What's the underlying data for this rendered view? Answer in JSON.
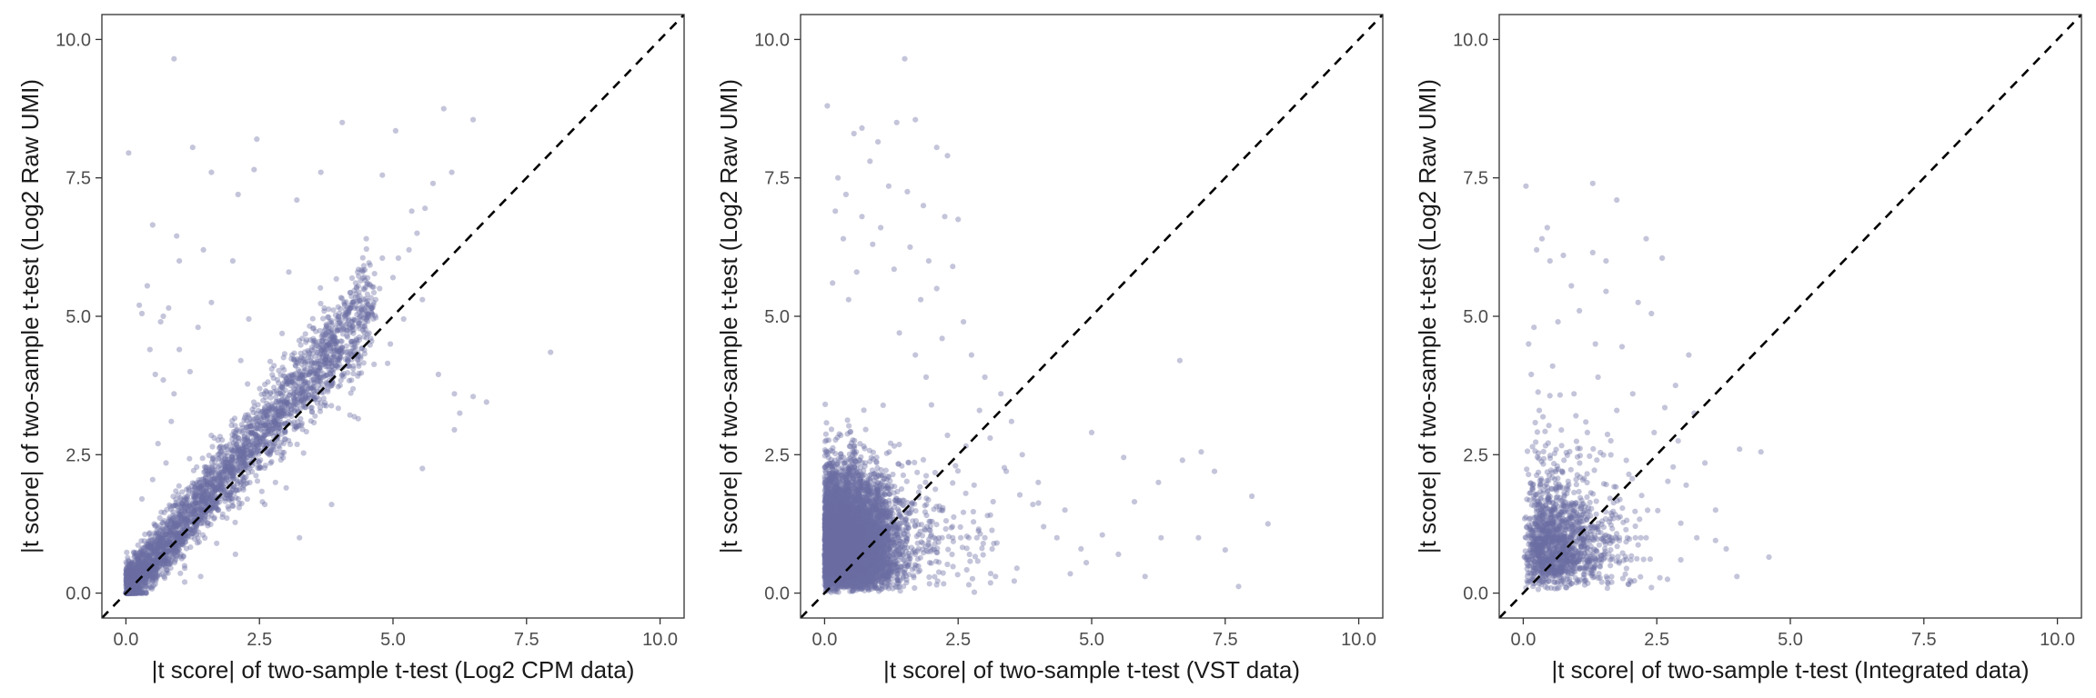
{
  "style": {
    "point_color": "#6b6fa3",
    "point_opacity": 0.4,
    "background": "#ffffff",
    "frame_color": "#333333",
    "reference_line": "dashed black y = x"
  },
  "chart_data": [
    {
      "type": "scatter",
      "title": "",
      "xlabel": "|t score| of two-sample t-test (Log2 CPM data)",
      "ylabel": "|t score| of two-sample t-test (Log2 Raw UMI)",
      "xlim": [
        -0.45,
        10.45
      ],
      "ylim": [
        -0.45,
        10.45
      ],
      "xticks": [
        "0.0",
        "2.5",
        "5.0",
        "7.5",
        "10.0"
      ],
      "yticks": [
        "0.0",
        "2.5",
        "5.0",
        "7.5",
        "10.0"
      ],
      "xtick_values": [
        0,
        2.5,
        5,
        7.5,
        10
      ],
      "ytick_values": [
        0,
        2.5,
        5,
        7.5,
        10
      ],
      "reference_line": "y = x",
      "grid": false,
      "points": [
        [
          0.9,
          9.65
        ],
        [
          0.05,
          7.95
        ],
        [
          1.25,
          8.05
        ],
        [
          2.45,
          8.2
        ],
        [
          4.05,
          8.5
        ],
        [
          5.05,
          8.35
        ],
        [
          5.95,
          8.75
        ],
        [
          6.5,
          8.55
        ],
        [
          1.6,
          7.6
        ],
        [
          2.4,
          7.65
        ],
        [
          3.65,
          7.6
        ],
        [
          4.8,
          7.55
        ],
        [
          5.75,
          7.4
        ],
        [
          6.1,
          7.6
        ],
        [
          3.2,
          7.1
        ],
        [
          2.1,
          7.2
        ],
        [
          0.5,
          6.65
        ],
        [
          1.0,
          6.0
        ],
        [
          1.45,
          6.2
        ],
        [
          0.95,
          6.45
        ],
        [
          2.0,
          6.0
        ],
        [
          3.05,
          5.8
        ],
        [
          4.5,
          6.4
        ],
        [
          5.35,
          6.9
        ],
        [
          5.6,
          6.95
        ],
        [
          5.45,
          6.5
        ],
        [
          1.6,
          5.25
        ],
        [
          0.4,
          5.55
        ],
        [
          0.25,
          5.2
        ],
        [
          0.3,
          5.05
        ],
        [
          0.65,
          4.9
        ],
        [
          0.8,
          5.15
        ],
        [
          0.7,
          5.0
        ],
        [
          1.35,
          4.8
        ],
        [
          1.0,
          4.4
        ],
        [
          2.3,
          4.95
        ],
        [
          2.15,
          4.2
        ],
        [
          0.45,
          4.4
        ],
        [
          0.55,
          3.95
        ],
        [
          0.9,
          3.6
        ],
        [
          0.7,
          3.85
        ],
        [
          1.2,
          4.0
        ],
        [
          3.3,
          4.6
        ],
        [
          3.75,
          4.85
        ],
        [
          4.25,
          5.25
        ],
        [
          4.5,
          5.1
        ],
        [
          4.75,
          5.5
        ],
        [
          5.0,
          5.7
        ],
        [
          5.3,
          6.2
        ],
        [
          5.1,
          6.05
        ],
        [
          4.8,
          6.05
        ],
        [
          4.3,
          5.6
        ],
        [
          7.95,
          4.35
        ],
        [
          6.15,
          3.6
        ],
        [
          6.5,
          3.55
        ],
        [
          6.75,
          3.45
        ],
        [
          6.25,
          3.25
        ],
        [
          6.15,
          2.95
        ],
        [
          5.55,
          2.25
        ],
        [
          5.85,
          3.95
        ],
        [
          4.9,
          4.15
        ],
        [
          4.35,
          3.15
        ],
        [
          3.85,
          1.6
        ],
        [
          3.25,
          1.0
        ],
        [
          2.05,
          0.7
        ],
        [
          1.7,
          0.9
        ],
        [
          2.6,
          1.6
        ],
        [
          2.8,
          2.0
        ],
        [
          3.0,
          1.9
        ],
        [
          1.4,
          0.3
        ],
        [
          1.1,
          0.2
        ],
        [
          0.3,
          1.7
        ],
        [
          0.5,
          2.05
        ],
        [
          0.75,
          2.35
        ],
        [
          0.85,
          3.1
        ],
        [
          0.6,
          2.7
        ],
        [
          3.65,
          3.7
        ],
        [
          3.9,
          4.05
        ],
        [
          4.6,
          4.55
        ],
        [
          4.95,
          4.5
        ],
        [
          5.2,
          4.95
        ],
        [
          5.55,
          5.3
        ],
        [
          2.7,
          3.6
        ],
        [
          2.95,
          3.3
        ]
      ],
      "cloud": {
        "slope": 1.12,
        "spread": 0.22,
        "x_max": 4.6,
        "n": 3200,
        "seed": 11
      }
    },
    {
      "type": "scatter",
      "title": "",
      "xlabel": "|t score| of two-sample t-test (VST data)",
      "ylabel": "|t score| of two-sample t-test (Log2 Raw UMI)",
      "xlim": [
        -0.45,
        10.45
      ],
      "ylim": [
        -0.45,
        10.45
      ],
      "xticks": [
        "0.0",
        "2.5",
        "5.0",
        "7.5",
        "10.0"
      ],
      "yticks": [
        "0.0",
        "2.5",
        "5.0",
        "7.5",
        "10.0"
      ],
      "xtick_values": [
        0,
        2.5,
        5,
        7.5,
        10
      ],
      "ytick_values": [
        0,
        2.5,
        5,
        7.5,
        10
      ],
      "reference_line": "y = x",
      "grid": false,
      "points": [
        [
          1.5,
          9.65
        ],
        [
          0.05,
          8.8
        ],
        [
          0.7,
          8.4
        ],
        [
          0.55,
          8.3
        ],
        [
          1.35,
          8.5
        ],
        [
          1.7,
          8.55
        ],
        [
          1.0,
          8.15
        ],
        [
          2.1,
          8.05
        ],
        [
          2.3,
          7.9
        ],
        [
          0.85,
          7.8
        ],
        [
          0.25,
          7.5
        ],
        [
          0.4,
          7.2
        ],
        [
          1.2,
          7.35
        ],
        [
          1.55,
          7.25
        ],
        [
          1.85,
          7.0
        ],
        [
          0.2,
          6.9
        ],
        [
          0.7,
          6.8
        ],
        [
          1.05,
          6.6
        ],
        [
          2.25,
          6.8
        ],
        [
          2.5,
          6.75
        ],
        [
          0.35,
          6.4
        ],
        [
          0.9,
          6.3
        ],
        [
          1.6,
          6.25
        ],
        [
          1.95,
          6.0
        ],
        [
          2.4,
          5.9
        ],
        [
          1.3,
          5.85
        ],
        [
          0.6,
          5.8
        ],
        [
          0.15,
          5.6
        ],
        [
          2.1,
          5.5
        ],
        [
          1.8,
          5.3
        ],
        [
          0.45,
          5.3
        ],
        [
          2.6,
          4.9
        ],
        [
          2.2,
          4.6
        ],
        [
          2.75,
          4.3
        ],
        [
          3.0,
          3.9
        ],
        [
          3.3,
          3.6
        ],
        [
          2.9,
          3.3
        ],
        [
          3.5,
          3.1
        ],
        [
          3.1,
          2.8
        ],
        [
          3.7,
          2.5
        ],
        [
          3.4,
          2.2
        ],
        [
          4.0,
          2.0
        ],
        [
          3.9,
          1.6
        ],
        [
          4.5,
          1.5
        ],
        [
          4.1,
          1.2
        ],
        [
          5.2,
          1.05
        ],
        [
          4.35,
          1.0
        ],
        [
          4.8,
          0.8
        ],
        [
          5.5,
          0.7
        ],
        [
          4.6,
          0.35
        ],
        [
          4.9,
          0.55
        ],
        [
          6.0,
          0.3
        ],
        [
          5.0,
          2.9
        ],
        [
          5.6,
          2.45
        ],
        [
          6.25,
          2.0
        ],
        [
          5.8,
          1.65
        ],
        [
          6.7,
          2.4
        ],
        [
          6.65,
          4.2
        ],
        [
          7.05,
          2.55
        ],
        [
          7.3,
          2.2
        ],
        [
          7.5,
          0.78
        ],
        [
          7.75,
          0.12
        ],
        [
          8.3,
          1.25
        ],
        [
          8.0,
          1.75
        ],
        [
          7.0,
          1.0
        ],
        [
          6.3,
          1.0
        ],
        [
          3.6,
          0.45
        ],
        [
          2.7,
          0.15
        ],
        [
          3.2,
          0.3
        ],
        [
          2.4,
          1.0
        ],
        [
          2.55,
          1.0
        ],
        [
          2.7,
          1.0
        ],
        [
          2.85,
          1.0
        ],
        [
          3.0,
          1.0
        ],
        [
          2.2,
          1.0
        ],
        [
          2.05,
          1.0
        ],
        [
          3.05,
          1.4
        ],
        [
          2.8,
          1.95
        ],
        [
          2.45,
          2.3
        ],
        [
          2.3,
          2.85
        ],
        [
          2.0,
          3.4
        ],
        [
          1.9,
          3.9
        ],
        [
          1.7,
          4.3
        ],
        [
          1.4,
          4.7
        ]
      ],
      "cloud": {
        "x_scale": 0.55,
        "y_scale": 0.65,
        "y_max": 5.2,
        "n": 6500,
        "seed": 23
      }
    },
    {
      "type": "scatter",
      "title": "",
      "xlabel": "|t score| of two-sample t-test (Integrated data)",
      "ylabel": "|t score| of two-sample t-test (Log2 Raw UMI)",
      "xlim": [
        -0.45,
        10.45
      ],
      "ylim": [
        -0.45,
        10.45
      ],
      "xticks": [
        "0.0",
        "2.5",
        "5.0",
        "7.5",
        "10.0"
      ],
      "yticks": [
        "0.0",
        "2.5",
        "5.0",
        "7.5",
        "10.0"
      ],
      "xtick_values": [
        0,
        2.5,
        5,
        7.5,
        10
      ],
      "ytick_values": [
        0,
        2.5,
        5,
        7.5,
        10
      ],
      "reference_line": "y = x",
      "grid": false,
      "points": [
        [
          0.05,
          7.35
        ],
        [
          1.3,
          7.4
        ],
        [
          1.75,
          7.1
        ],
        [
          0.45,
          6.6
        ],
        [
          0.35,
          6.4
        ],
        [
          0.25,
          6.2
        ],
        [
          0.5,
          6.0
        ],
        [
          0.75,
          6.1
        ],
        [
          1.3,
          6.15
        ],
        [
          1.55,
          6.0
        ],
        [
          2.3,
          6.4
        ],
        [
          2.6,
          6.05
        ],
        [
          0.9,
          5.55
        ],
        [
          1.55,
          5.45
        ],
        [
          2.15,
          5.25
        ],
        [
          2.4,
          5.05
        ],
        [
          1.05,
          5.1
        ],
        [
          0.65,
          4.9
        ],
        [
          0.1,
          4.5
        ],
        [
          0.2,
          4.8
        ],
        [
          1.35,
          4.5
        ],
        [
          1.85,
          4.45
        ],
        [
          3.1,
          4.3
        ],
        [
          2.85,
          3.75
        ],
        [
          2.65,
          3.35
        ],
        [
          3.2,
          3.25
        ],
        [
          2.9,
          2.75
        ],
        [
          4.05,
          2.6
        ],
        [
          4.45,
          2.55
        ],
        [
          3.4,
          2.35
        ],
        [
          3.05,
          1.95
        ],
        [
          3.6,
          1.5
        ],
        [
          3.25,
          1.0
        ],
        [
          3.6,
          0.95
        ],
        [
          4.6,
          0.65
        ],
        [
          4.0,
          0.3
        ],
        [
          3.8,
          0.8
        ],
        [
          2.7,
          0.25
        ],
        [
          2.95,
          0.6
        ],
        [
          2.4,
          0.1
        ],
        [
          2.2,
          1.0
        ],
        [
          2.3,
          1.0
        ],
        [
          2.1,
          1.0
        ],
        [
          1.95,
          1.0
        ],
        [
          1.8,
          1.0
        ],
        [
          1.65,
          1.0
        ],
        [
          1.5,
          1.0
        ],
        [
          1.35,
          1.0
        ],
        [
          1.2,
          1.0
        ],
        [
          1.05,
          1.0
        ],
        [
          0.9,
          1.0
        ],
        [
          0.75,
          1.0
        ],
        [
          0.6,
          1.0
        ],
        [
          0.45,
          1.0
        ],
        [
          0.3,
          1.0
        ],
        [
          0.15,
          1.0
        ],
        [
          0.05,
          1.0
        ],
        [
          1.4,
          3.9
        ],
        [
          0.55,
          4.1
        ],
        [
          0.95,
          3.6
        ],
        [
          1.75,
          3.3
        ],
        [
          2.05,
          3.6
        ],
        [
          0.15,
          3.95
        ],
        [
          0.3,
          3.3
        ],
        [
          1.2,
          2.9
        ],
        [
          2.45,
          2.9
        ]
      ],
      "cloud": {
        "x_scale": 0.75,
        "y_scale": 0.9,
        "x_max": 3.3,
        "y_max": 4.8,
        "n": 1400,
        "seed": 37
      }
    }
  ]
}
